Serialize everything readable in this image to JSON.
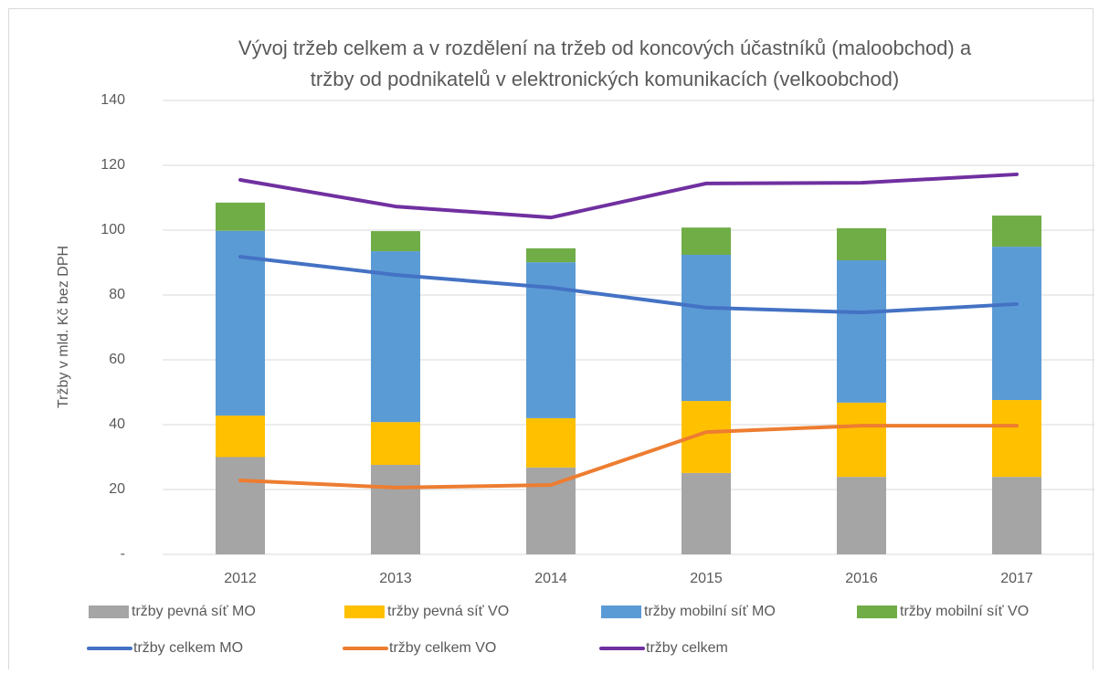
{
  "chart_data": {
    "type": "bar",
    "title": [
      "Vývoj tržeb celkem a v rozdělení na tržeb od koncových účastníků (maloobchod) a",
      "tržby od podnikatelů v elektronických komunikacích (velkoobchod)"
    ],
    "y_label": "Tržby v mld. Kč bez DPH",
    "categories": [
      "2012",
      "2013",
      "2014",
      "2015",
      "2016",
      "2017"
    ],
    "ylim": [
      0,
      140
    ],
    "yticks": [
      {
        "value": 0,
        "label": "-"
      },
      20,
      40,
      60,
      80,
      100,
      120,
      140
    ],
    "grid": true,
    "legend": "bottom",
    "series": [
      {
        "name": "tržby pevná síť MO",
        "type": "bar",
        "color": "#a5a5a5",
        "values": [
          30,
          27.6,
          26.8,
          25.1,
          23.9,
          23.9
        ]
      },
      {
        "name": "tržby pevná síť VO",
        "type": "bar",
        "color": "#ffc000",
        "values": [
          12.8,
          13.2,
          15.2,
          22.2,
          22.9,
          23.7
        ]
      },
      {
        "name": "tržby mobilní síť MO",
        "type": "bar",
        "color": "#5b9bd5",
        "values": [
          57,
          52.7,
          48.1,
          45.1,
          43.9,
          47.3
        ]
      },
      {
        "name": "tržby mobilní síť VO",
        "type": "bar",
        "color": "#70ad47",
        "values": [
          8.7,
          6.2,
          4.3,
          8.4,
          9.9,
          9.6
        ]
      },
      {
        "name": "tržby celkem MO",
        "type": "line",
        "color": "#4472c4",
        "values": [
          91.8,
          86.2,
          82.3,
          76.1,
          74.6,
          77.2
        ]
      },
      {
        "name": "tržby celkem VO",
        "type": "line",
        "color": "#ed7d31",
        "values": [
          22.8,
          20.6,
          21.4,
          37.7,
          39.7,
          39.7
        ]
      },
      {
        "name": "tržby celkem",
        "type": "line",
        "color": "#7030a0",
        "values": [
          115.5,
          107.3,
          103.9,
          114.4,
          114.6,
          117.2
        ]
      }
    ]
  }
}
